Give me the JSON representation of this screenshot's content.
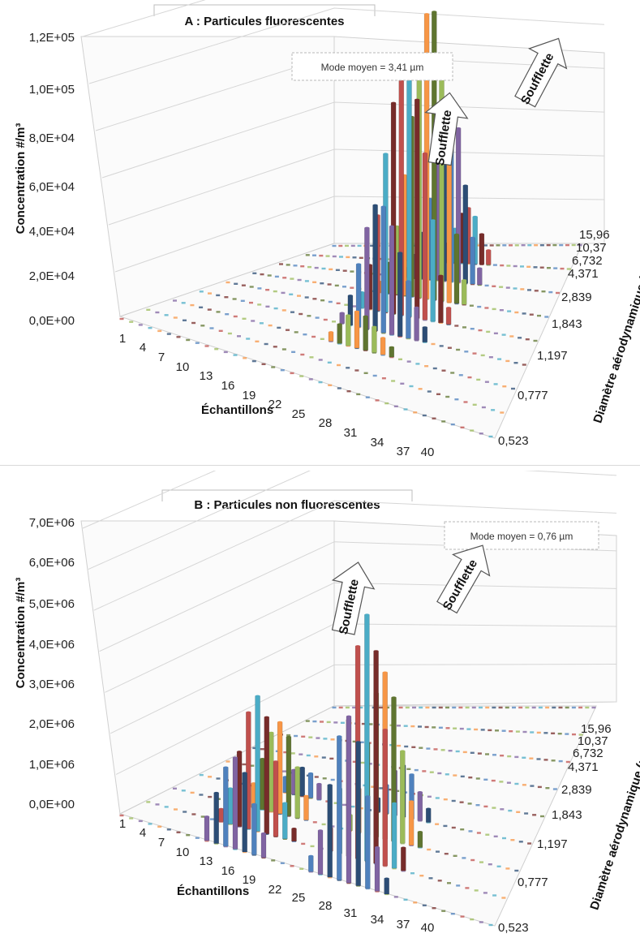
{
  "chart_data": [
    {
      "type": "bar3d",
      "title": "A : Particules fluorescentes",
      "ylabel": "Concentration #/m³",
      "xlabel": "Échantillons",
      "zlabel": "Diamètre aérodynamique  (µm)",
      "yticks": [
        "0,0E+00",
        "2,0E+04",
        "4,0E+04",
        "6,0E+04",
        "8,0E+04",
        "1,0E+05",
        "1,2E+05"
      ],
      "ylim": [
        0,
        120000
      ],
      "xticks": [
        "1",
        "4",
        "7",
        "10",
        "13",
        "16",
        "19",
        "22",
        "25",
        "28",
        "31",
        "34",
        "37",
        "40"
      ],
      "zticks": [
        "0,523",
        "0,777",
        "1,197",
        "1,843",
        "2,839",
        "4,371",
        "6,732",
        "10,37",
        "15,96"
      ],
      "annotations": [
        "Mode moyen = 3,41 µm",
        "Soufflette",
        "Soufflette"
      ],
      "peaks": [
        {
          "sample": 22,
          "diameter": "2,839",
          "value": 70000
        },
        {
          "sample": 25,
          "diameter": "4,371",
          "value": 110000
        }
      ]
    },
    {
      "type": "bar3d",
      "title": "B : Particules non fluorescentes",
      "ylabel": "Concentration #/m³",
      "xlabel": "Échantillons",
      "zlabel": "Diamètre aérodynamique  (µm)",
      "yticks": [
        "0,0E+00",
        "1,0E+06",
        "2,0E+06",
        "3,0E+06",
        "4,0E+06",
        "5,0E+06",
        "6,0E+06",
        "7,0E+06"
      ],
      "ylim": [
        0,
        7000000
      ],
      "xticks": [
        "1",
        "4",
        "7",
        "10",
        "13",
        "16",
        "19",
        "22",
        "25",
        "28",
        "31",
        "34",
        "37",
        "40"
      ],
      "zticks": [
        "0,523",
        "0,777",
        "1,197",
        "1,843",
        "2,839",
        "4,371",
        "6,732",
        "10,37",
        "15,96"
      ],
      "annotations": [
        "Mode moyen = 0,76 µm",
        "Soufflette",
        "Soufflette"
      ],
      "peaks": [
        {
          "sample": 13,
          "diameter": "0,777",
          "value": 3300000
        },
        {
          "sample": 25,
          "diameter": "0,777",
          "value": 6000000
        }
      ]
    }
  ],
  "colors": [
    "#4f81bd",
    "#c0504d",
    "#9bbb59",
    "#8064a2",
    "#4bacc6",
    "#f79646",
    "#2c4d75",
    "#772c2a",
    "#5f7530"
  ]
}
